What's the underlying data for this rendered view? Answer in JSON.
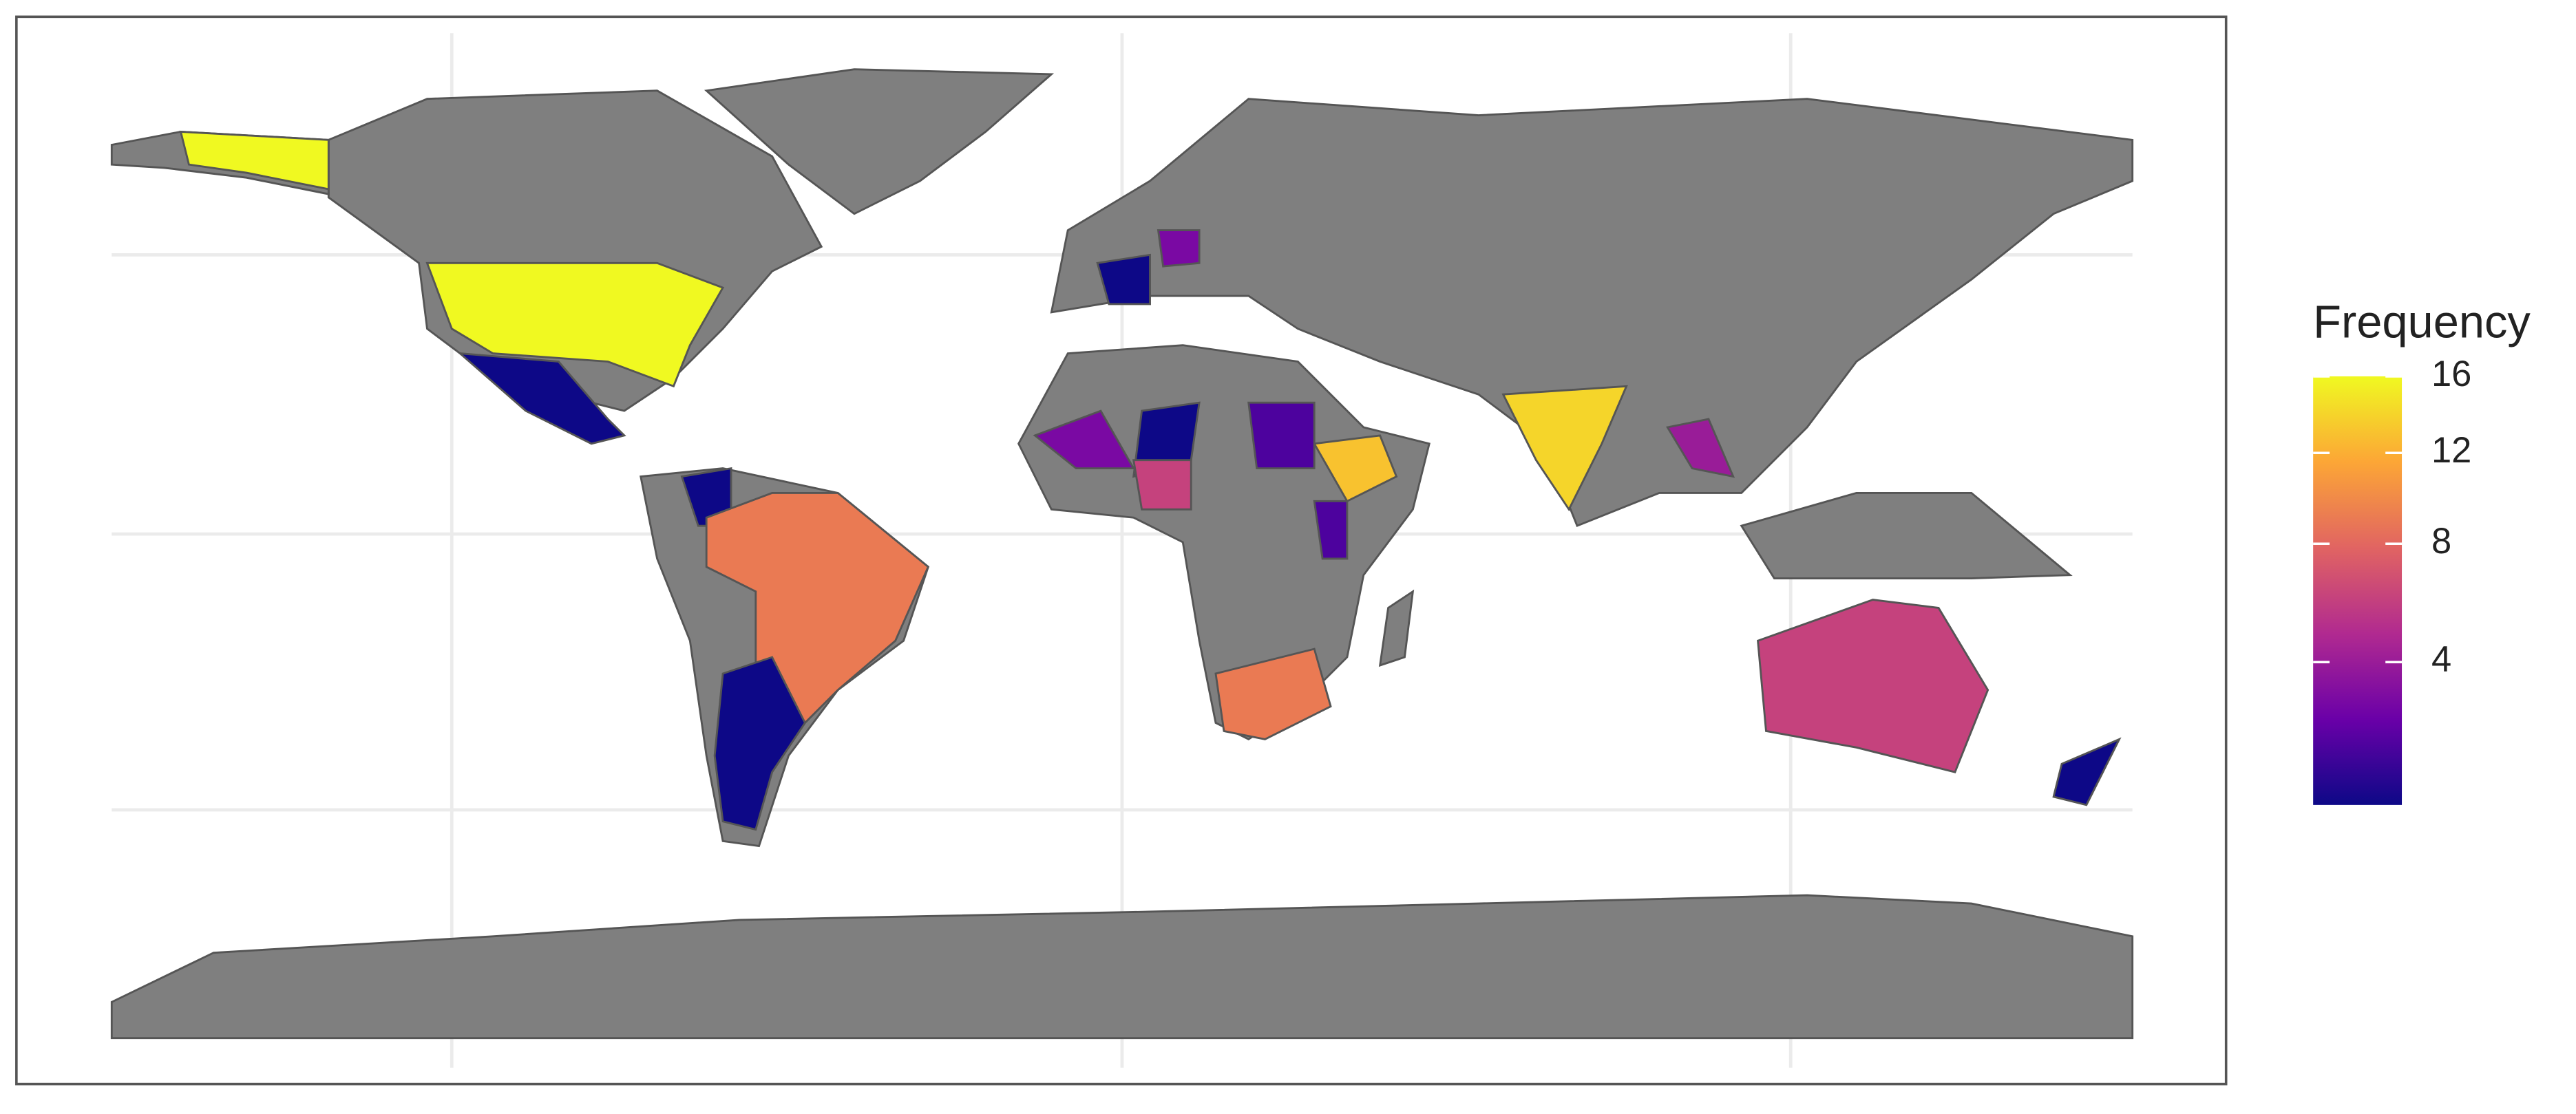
{
  "chart_data": {
    "type": "choropleth",
    "legend_title": "Frequency",
    "values": [
      16,
      16,
      1,
      1,
      9,
      1,
      1,
      3,
      14,
      13,
      2,
      3,
      1,
      6,
      2,
      9,
      4,
      6,
      1
    ],
    "scale": "sqrt",
    "clim": [
      1,
      16
    ],
    "cticks": [
      4,
      8,
      12,
      16
    ],
    "colors": [
      "#0d0887",
      "#6a00a8",
      "#b12a90",
      "#e16462",
      "#fca636",
      "#f0f921"
    ],
    "land_color": "#7f7f7f",
    "grid": true
  }
}
